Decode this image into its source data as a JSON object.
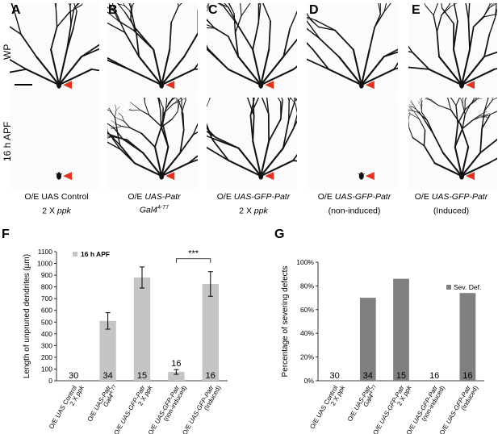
{
  "panel_letters": [
    "A",
    "B",
    "C",
    "D",
    "E",
    "F",
    "G"
  ],
  "row_labels": {
    "top": "WP",
    "bottom": "16 h APF"
  },
  "captions": [
    {
      "line1_plain": "O/E UAS Control",
      "line1_italic": "",
      "line2_plain": "2 X ",
      "line2_italic": "ppk",
      "line2_sup": ""
    },
    {
      "line1_plain": "O/E ",
      "line1_italic": "UAS-Patr",
      "line2_plain": "",
      "line2_italic": "Gal4",
      "line2_sup": "4-77"
    },
    {
      "line1_plain": "O/E ",
      "line1_italic": "UAS-GFP-Patr",
      "line2_plain": "2 X ",
      "line2_italic": "ppk",
      "line2_sup": ""
    },
    {
      "line1_plain": "O/E ",
      "line1_italic": "UAS-GFP-Patr",
      "line2_plain": "(non-induced)",
      "line2_italic": "",
      "line2_sup": ""
    },
    {
      "line1_plain": "O/E ",
      "line1_italic": "UAS-GFP-Patr",
      "line2_plain": "(Induced)",
      "line2_italic": "",
      "line2_sup": ""
    }
  ],
  "chart_data": [
    {
      "type": "bar",
      "panel": "F",
      "legend": "16 h APF",
      "ylabel": "Length of unpruned dendrites (µm)",
      "ylim": [
        0,
        1100
      ],
      "yticks": [
        0,
        100,
        200,
        300,
        400,
        500,
        600,
        700,
        800,
        900,
        1000,
        1100
      ],
      "categories": [
        "O/E UAS Control 2 X ppk",
        "O/E UAS-Patr Gal4 4-77",
        "O/E UAS-GFP-Patr 2 X ppk",
        "O/E UAS-GFP-Patr (non-induced)",
        "O/E UAS-GFP-Patr (Induced)"
      ],
      "values": [
        0,
        510,
        880,
        75,
        825
      ],
      "errors": [
        0,
        70,
        90,
        20,
        105
      ],
      "n_labels": [
        "30",
        "34",
        "15",
        "16",
        "16"
      ],
      "significance": "***",
      "color": "#c4c4c4"
    },
    {
      "type": "bar",
      "panel": "G",
      "legend": "Sev. Def.",
      "ylabel": "Percentage of severing defects",
      "ylim": [
        0,
        100
      ],
      "yticks": [
        "0%",
        "20%",
        "40%",
        "60%",
        "80%",
        "100%"
      ],
      "categories": [
        "O/E UAS Control 2 X ppk",
        "O/E UAS-Patr Gal4 4-77",
        "O/E UAS-GFP-Patr 2 X ppk",
        "O/E UAS-GFP-Patr (non-induced)",
        "O/E UAS-GFP-Patr (Induced)"
      ],
      "values": [
        0,
        70,
        86,
        0,
        74
      ],
      "n_labels": [
        "30",
        "34",
        "15",
        "16",
        "16"
      ],
      "color": "#808080"
    }
  ],
  "x_label_parts": [
    {
      "l1": "O/E UAS Control",
      "l1i": "",
      "l2": "2 X ",
      "l2i": "ppk",
      "l2s": ""
    },
    {
      "l1": "O/E ",
      "l1i": "UAS-Patr",
      "l2": "",
      "l2i": "Gal4",
      "l2s": "4-77"
    },
    {
      "l1": "O/E ",
      "l1i": "UAS-GFP-Patr",
      "l2": "2 X ",
      "l2i": "ppk",
      "l2s": ""
    },
    {
      "l1": "O/E ",
      "l1i": "UAS-GFP-Patr",
      "l2": "(non-induced)",
      "l2i": "",
      "l2s": ""
    },
    {
      "l1": "O/E ",
      "l1i": "UAS-GFP-Patr",
      "l2": "(Induced)",
      "l2i": "",
      "l2s": ""
    }
  ],
  "colors": {
    "arrowhead": "#e8321e",
    "neuron": "#111111",
    "bar_f": "#c4c4c4",
    "bar_g": "#808080"
  }
}
